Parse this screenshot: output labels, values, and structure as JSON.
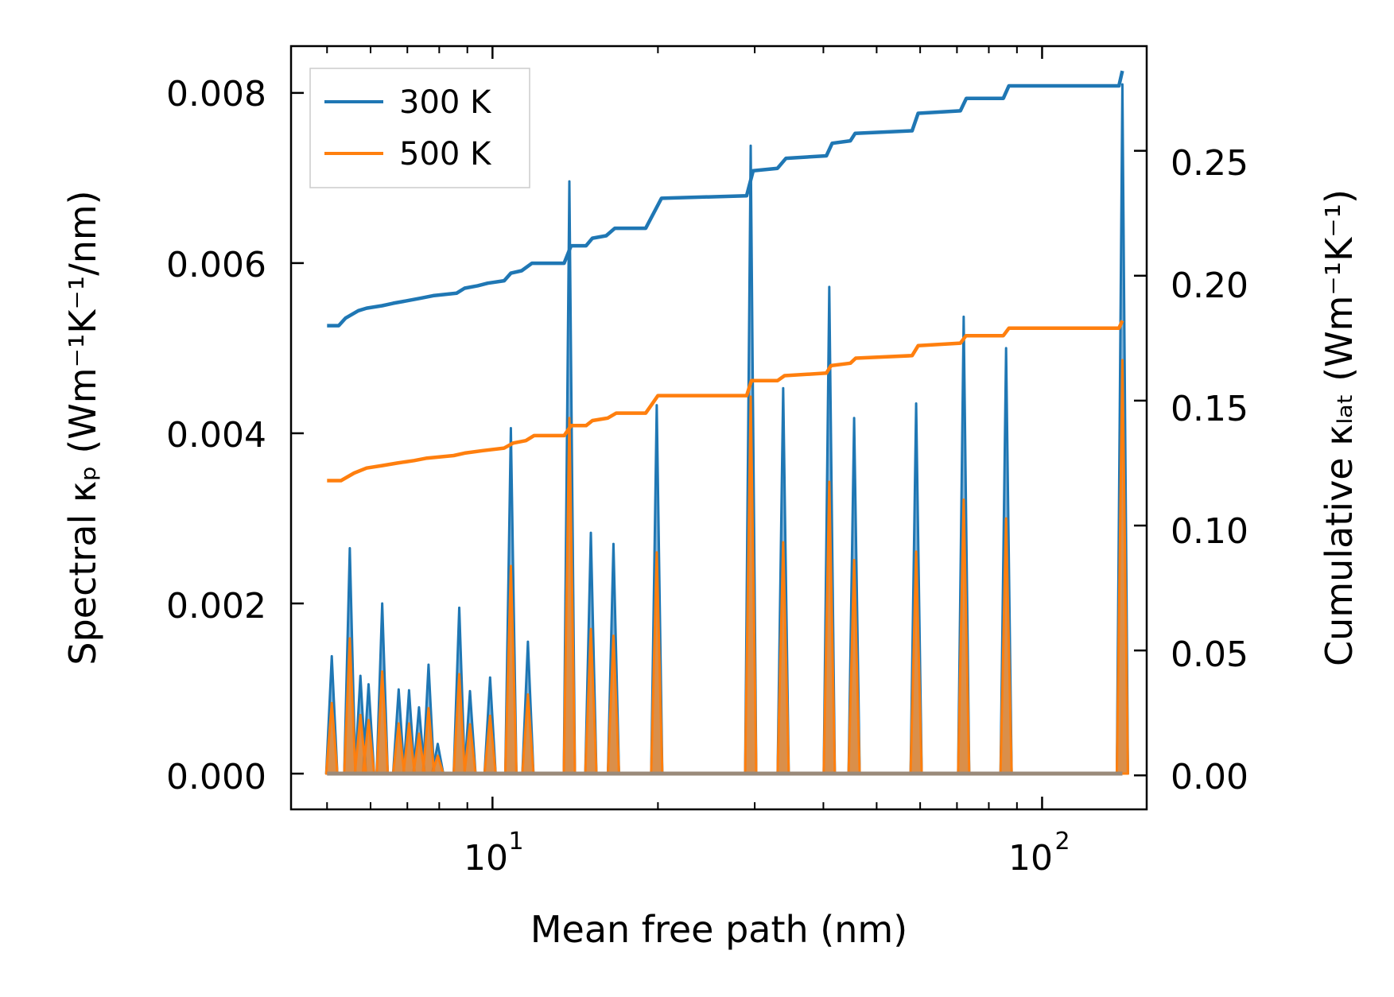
{
  "chart_data": {
    "type": "line",
    "xscale": "log",
    "xlim": [
      4.3,
      155
    ],
    "ylim_left": [
      -0.00042,
      0.00855
    ],
    "ylim_right": [
      -0.0136,
      0.2919
    ],
    "xlabel": "Mean free path (nm)",
    "ylabel_left": "Spectral κₚ (Wm⁻¹K⁻¹/nm)",
    "ylabel_right": "Cumulative κₗₐₜ (Wm⁻¹K⁻¹)",
    "x_ticks": [
      {
        "value": 10,
        "base": "10",
        "exp": "1"
      },
      {
        "value": 100,
        "base": "10",
        "exp": "2"
      }
    ],
    "y_left_ticks": [
      {
        "value": 0.0,
        "label": "0.000"
      },
      {
        "value": 0.002,
        "label": "0.002"
      },
      {
        "value": 0.004,
        "label": "0.004"
      },
      {
        "value": 0.006,
        "label": "0.006"
      },
      {
        "value": 0.008,
        "label": "0.008"
      }
    ],
    "y_right_ticks": [
      {
        "value": 0.0,
        "label": "0.00"
      },
      {
        "value": 0.05,
        "label": "0.05"
      },
      {
        "value": 0.1,
        "label": "0.10"
      },
      {
        "value": 0.15,
        "label": "0.15"
      },
      {
        "value": 0.2,
        "label": "0.20"
      },
      {
        "value": 0.25,
        "label": "0.25"
      }
    ],
    "spectral_peaks": [
      {
        "x": 5.1,
        "v300": 0.00138,
        "v500": 0.00083
      },
      {
        "x": 5.5,
        "v300": 0.00265,
        "v500": 0.00159
      },
      {
        "x": 5.75,
        "v300": 0.00115,
        "v500": 0.00069
      },
      {
        "x": 5.95,
        "v300": 0.00105,
        "v500": 0.00063
      },
      {
        "x": 6.3,
        "v300": 0.002,
        "v500": 0.0012
      },
      {
        "x": 6.75,
        "v300": 0.00099,
        "v500": 0.00059
      },
      {
        "x": 7.05,
        "v300": 0.00098,
        "v500": 0.00059
      },
      {
        "x": 7.35,
        "v300": 0.00078,
        "v500": 0.00047
      },
      {
        "x": 7.65,
        "v300": 0.00128,
        "v500": 0.00077
      },
      {
        "x": 7.95,
        "v300": 0.00035,
        "v500": 0.00021
      },
      {
        "x": 8.7,
        "v300": 0.00195,
        "v500": 0.00117
      },
      {
        "x": 9.1,
        "v300": 0.00097,
        "v500": 0.00058
      },
      {
        "x": 9.9,
        "v300": 0.00113,
        "v500": 0.00068
      },
      {
        "x": 10.8,
        "v300": 0.00406,
        "v500": 0.00244
      },
      {
        "x": 11.6,
        "v300": 0.00155,
        "v500": 0.00093
      },
      {
        "x": 13.8,
        "v300": 0.00696,
        "v500": 0.00418
      },
      {
        "x": 15.1,
        "v300": 0.00283,
        "v500": 0.0017
      },
      {
        "x": 16.6,
        "v300": 0.0027,
        "v500": 0.00162
      },
      {
        "x": 19.9,
        "v300": 0.00433,
        "v500": 0.0026
      },
      {
        "x": 29.5,
        "v300": 0.00738,
        "v500": 0.00443
      },
      {
        "x": 33.8,
        "v300": 0.00453,
        "v500": 0.00272
      },
      {
        "x": 41.0,
        "v300": 0.00572,
        "v500": 0.00343
      },
      {
        "x": 45.5,
        "v300": 0.00418,
        "v500": 0.00251
      },
      {
        "x": 59.0,
        "v300": 0.00435,
        "v500": 0.00261
      },
      {
        "x": 72.0,
        "v300": 0.00537,
        "v500": 0.00322
      },
      {
        "x": 86.0,
        "v300": 0.005,
        "v500": 0.003
      },
      {
        "x": 140.0,
        "v300": 0.0081,
        "v500": 0.00486
      }
    ],
    "series": [
      {
        "name": "300 K",
        "color": "#1f77b4",
        "axis": "right",
        "points": [
          [
            5.0,
            0.18
          ],
          [
            5.25,
            0.18
          ],
          [
            5.4,
            0.183
          ],
          [
            5.7,
            0.186
          ],
          [
            5.9,
            0.187
          ],
          [
            6.3,
            0.188
          ],
          [
            6.6,
            0.189
          ],
          [
            7.0,
            0.19
          ],
          [
            7.4,
            0.191
          ],
          [
            7.8,
            0.192
          ],
          [
            8.6,
            0.193
          ],
          [
            8.9,
            0.195
          ],
          [
            9.4,
            0.196
          ],
          [
            9.8,
            0.197
          ],
          [
            10.5,
            0.198
          ],
          [
            10.8,
            0.201
          ],
          [
            11.3,
            0.202
          ],
          [
            11.8,
            0.205
          ],
          [
            13.5,
            0.205
          ],
          [
            13.9,
            0.212
          ],
          [
            14.8,
            0.212
          ],
          [
            15.2,
            0.215
          ],
          [
            16.1,
            0.216
          ],
          [
            16.7,
            0.219
          ],
          [
            19.0,
            0.219
          ],
          [
            20.3,
            0.231
          ],
          [
            29.0,
            0.232
          ],
          [
            29.8,
            0.242
          ],
          [
            33.0,
            0.243
          ],
          [
            34.2,
            0.247
          ],
          [
            40.5,
            0.248
          ],
          [
            41.5,
            0.253
          ],
          [
            44.8,
            0.254
          ],
          [
            45.7,
            0.257
          ],
          [
            58.0,
            0.258
          ],
          [
            59.5,
            0.265
          ],
          [
            71.0,
            0.266
          ],
          [
            72.8,
            0.271
          ],
          [
            85.0,
            0.271
          ],
          [
            87.0,
            0.276
          ],
          [
            138.0,
            0.276
          ],
          [
            140.0,
            0.282
          ]
        ]
      },
      {
        "name": "500 K",
        "color": "#ff7f0e",
        "axis": "right",
        "points": [
          [
            5.0,
            0.118
          ],
          [
            5.3,
            0.118
          ],
          [
            5.6,
            0.121
          ],
          [
            5.9,
            0.123
          ],
          [
            6.3,
            0.124
          ],
          [
            6.7,
            0.125
          ],
          [
            7.2,
            0.126
          ],
          [
            7.6,
            0.127
          ],
          [
            8.5,
            0.128
          ],
          [
            8.9,
            0.129
          ],
          [
            9.6,
            0.13
          ],
          [
            10.5,
            0.131
          ],
          [
            10.9,
            0.133
          ],
          [
            11.5,
            0.134
          ],
          [
            11.9,
            0.136
          ],
          [
            13.5,
            0.136
          ],
          [
            13.9,
            0.14
          ],
          [
            14.8,
            0.14
          ],
          [
            15.2,
            0.142
          ],
          [
            16.2,
            0.143
          ],
          [
            16.8,
            0.145
          ],
          [
            19.0,
            0.145
          ],
          [
            20.0,
            0.152
          ],
          [
            29.0,
            0.152
          ],
          [
            29.6,
            0.158
          ],
          [
            33.0,
            0.158
          ],
          [
            34.0,
            0.16
          ],
          [
            40.5,
            0.161
          ],
          [
            41.3,
            0.164
          ],
          [
            44.8,
            0.165
          ],
          [
            45.8,
            0.167
          ],
          [
            58.0,
            0.168
          ],
          [
            59.5,
            0.172
          ],
          [
            71.0,
            0.173
          ],
          [
            72.7,
            0.176
          ],
          [
            85.0,
            0.176
          ],
          [
            87.0,
            0.179
          ],
          [
            138.0,
            0.179
          ],
          [
            140.0,
            0.182
          ]
        ]
      }
    ],
    "legend": {
      "position": "top-left",
      "entries": [
        {
          "label": "300 K",
          "color": "#1f77b4"
        },
        {
          "label": "500 K",
          "color": "#ff7f0e"
        }
      ]
    }
  }
}
